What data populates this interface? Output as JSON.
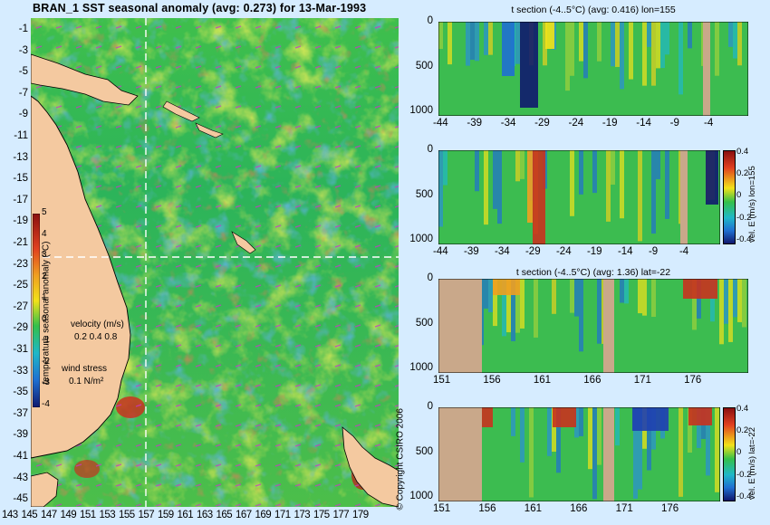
{
  "main_title": "BRAN_1 SST seasonal anomaly (avg: 0.273) for 13-Mar-1993",
  "map": {
    "lat_labels": [
      "-1",
      "-3",
      "-5",
      "-7",
      "-9",
      "-11",
      "-13",
      "-15",
      "-17",
      "-19",
      "-21",
      "-23",
      "-25",
      "-27",
      "-29",
      "-31",
      "-33",
      "-35",
      "-37",
      "-39",
      "-41",
      "-43",
      "-45"
    ],
    "lon_labels": [
      "143",
      "145",
      "147",
      "149",
      "151",
      "153",
      "155",
      "157",
      "159",
      "161",
      "163",
      "165",
      "167",
      "169",
      "171",
      "173",
      "175",
      "177",
      "179"
    ],
    "colorbar_label": "temperature seasonal anomaly (°C)",
    "colorbar_ticks": [
      "5",
      "4",
      "3",
      "2",
      "1",
      "0",
      "-1",
      "-2",
      "-3",
      "-4"
    ],
    "velocity_label": "velocity (m/s)",
    "velocity_scale": "0.2 0.4 0.8",
    "wind_label": "wind stress",
    "wind_scale": "0.1 N/m²",
    "colors": {
      "land": "#f4c9a0",
      "ocean_base": "#22b85a",
      "warm": "#f2e21a",
      "hot": "#c8321e",
      "cool": "#1f6fd1",
      "cold": "#16237e",
      "crosshair": "#ffffff",
      "vector": "#cc33cc"
    }
  },
  "panels": [
    {
      "title": "t section (-4..5°C) (avg: 0.416) lon=155",
      "x_ticks": [
        "-44",
        "-39",
        "-34",
        "-29",
        "-24",
        "-19",
        "-14",
        "-9",
        "-4"
      ],
      "y_ticks": [
        "0",
        "500",
        "1000"
      ],
      "side_label": "",
      "side_ticks": []
    },
    {
      "title": "",
      "x_ticks": [
        "-44",
        "-39",
        "-34",
        "-29",
        "-24",
        "-19",
        "-14",
        "-9",
        "-4"
      ],
      "y_ticks": [
        "0",
        "500",
        "1000"
      ],
      "side_label": "vel. E (m/s) lon=155",
      "side_ticks": [
        "0.4",
        "0.2",
        "0",
        "-0.2",
        "-0.4"
      ]
    },
    {
      "title": "t section (-4..5°C) (avg: 1.36) lat=-22",
      "x_ticks": [
        "151",
        "156",
        "161",
        "166",
        "171",
        "176"
      ],
      "y_ticks": [
        "0",
        "500",
        "1000"
      ],
      "side_label": "",
      "side_ticks": []
    },
    {
      "title": "",
      "x_ticks": [
        "151",
        "156",
        "161",
        "166",
        "171",
        "176"
      ],
      "y_ticks": [
        "0",
        "500",
        "1000"
      ],
      "side_label": "vel. E (m/s) lat=-22",
      "side_ticks": [
        "0.4",
        "0.2",
        "0",
        "-0.2",
        "-0.4"
      ]
    }
  ],
  "copyright": "© Copyright CSIRO 2006",
  "chart_data": [
    {
      "type": "heatmap",
      "title": "BRAN_1 SST seasonal anomaly (avg: 0.273) for 13-Mar-1993",
      "xlabel": "",
      "ylabel": "",
      "xlim": [
        142,
        180
      ],
      "ylim": [
        -45,
        0
      ],
      "zlim": [
        -4,
        5
      ],
      "zlabel": "temperature seasonal anomaly (°C)"
    },
    {
      "type": "heatmap",
      "title": "t section (-4..5°C) (avg: 0.416) lon=155",
      "xlim": [
        -45,
        0
      ],
      "ylim": [
        1000,
        0
      ],
      "zlim": [
        -4,
        5
      ]
    },
    {
      "type": "heatmap",
      "title": "",
      "xlim": [
        -45,
        0
      ],
      "ylim": [
        1000,
        0
      ],
      "zlim": [
        -0.4,
        0.4
      ],
      "zlabel": "vel. E (m/s) lon=155"
    },
    {
      "type": "heatmap",
      "title": "t section (-4..5°C) (avg: 1.36) lat=-22",
      "xlim": [
        150,
        180
      ],
      "ylim": [
        1000,
        0
      ],
      "zlim": [
        -4,
        5
      ]
    },
    {
      "type": "heatmap",
      "title": "",
      "xlim": [
        150,
        180
      ],
      "ylim": [
        1000,
        0
      ],
      "zlim": [
        -0.4,
        0.4
      ],
      "zlabel": "vel. E (m/s) lat=-22"
    }
  ]
}
